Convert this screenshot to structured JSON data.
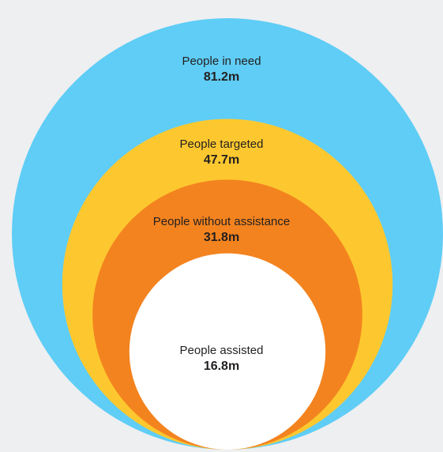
{
  "chart_data": {
    "type": "nested-circles",
    "unit": "m",
    "items": [
      {
        "name": "People in need",
        "value": 81.2,
        "label": "81.2m",
        "color": "#5fcdf6"
      },
      {
        "name": "People targeted",
        "value": 47.7,
        "label": "47.7m",
        "color": "#fdc82f"
      },
      {
        "name": "People without assistance",
        "value": 31.8,
        "label": "31.8m",
        "color": "#f3831f"
      },
      {
        "name": "People assisted",
        "value": 16.8,
        "label": "16.8m",
        "color": "#ffffff"
      }
    ]
  }
}
